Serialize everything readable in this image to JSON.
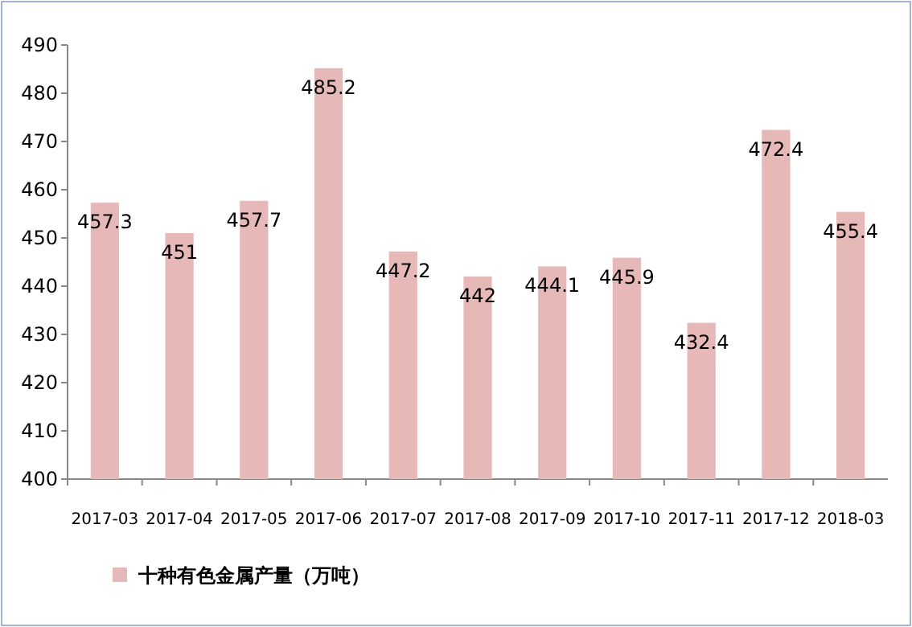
{
  "chart_data": {
    "type": "bar",
    "categories": [
      "2017-03",
      "2017-04",
      "2017-05",
      "2017-06",
      "2017-07",
      "2017-08",
      "2017-09",
      "2017-10",
      "2017-11",
      "2017-12",
      "2018-03"
    ],
    "series": [
      {
        "name": "十种有色金属产量（万吨）",
        "color": "#e6b9b8",
        "values": [
          457.3,
          451,
          457.7,
          485.2,
          447.2,
          442,
          444.1,
          445.9,
          432.4,
          472.4,
          455.4
        ]
      }
    ],
    "ylim": [
      400,
      490
    ],
    "yticks": [
      400,
      410,
      420,
      430,
      440,
      450,
      460,
      470,
      480,
      490
    ],
    "grid": false,
    "legend": "bottom left",
    "data_labels": true
  }
}
